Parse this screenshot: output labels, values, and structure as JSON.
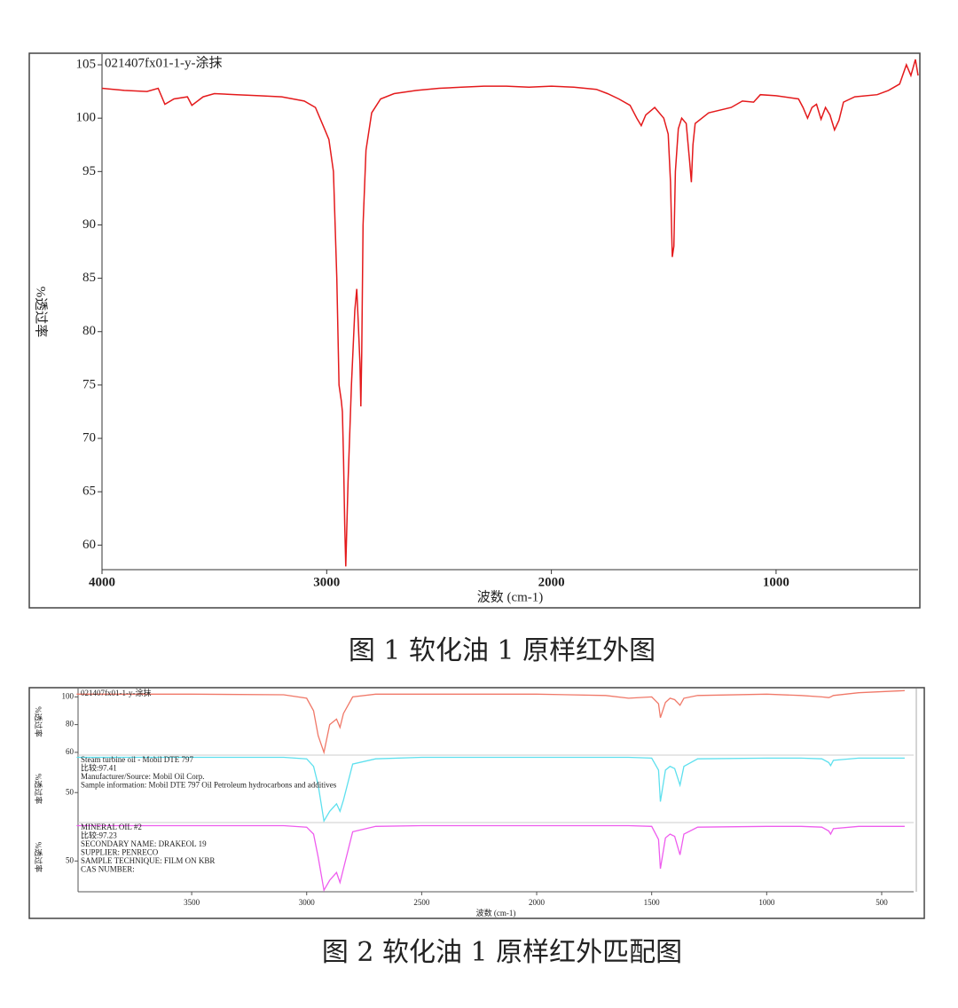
{
  "chart_data": [
    {
      "type": "line",
      "title": "021407fx01-1-y-涂抹",
      "xlabel": "波数 (cm-1)",
      "ylabel": "%透过率",
      "caption": "图 1 软化油 1 原样红外图",
      "xlim": [
        4000,
        368
      ],
      "ylim": [
        57.7,
        106
      ],
      "xticks": [
        4000,
        3000,
        2000,
        1000
      ],
      "yticks": [
        60,
        65,
        70,
        75,
        80,
        85,
        90,
        95,
        100,
        105
      ],
      "x": [
        4000,
        3900,
        3800,
        3750,
        3720,
        3680,
        3620,
        3600,
        3550,
        3500,
        3400,
        3300,
        3200,
        3100,
        3050,
        3010,
        2990,
        2970,
        2955,
        2945,
        2935,
        2930,
        2925,
        2920,
        2915,
        2905,
        2890,
        2875,
        2866,
        2860,
        2852,
        2848,
        2844,
        2838,
        2825,
        2800,
        2760,
        2700,
        2600,
        2500,
        2400,
        2300,
        2200,
        2100,
        2000,
        1900,
        1800,
        1750,
        1700,
        1650,
        1620,
        1600,
        1580,
        1540,
        1500,
        1480,
        1470,
        1462,
        1455,
        1448,
        1435,
        1420,
        1400,
        1385,
        1377,
        1370,
        1360,
        1300,
        1200,
        1150,
        1100,
        1070,
        1000,
        900,
        880,
        860,
        840,
        820,
        800,
        780,
        760,
        740,
        720,
        700,
        650,
        550,
        500,
        450,
        420,
        400,
        380,
        368
      ],
      "series": [
        {
          "color": "#e41a1c",
          "values": [
            102.8,
            102.6,
            102.5,
            102.8,
            101.3,
            101.8,
            102.0,
            101.2,
            102.0,
            102.3,
            102.2,
            102.1,
            102.0,
            101.6,
            101.0,
            99.0,
            98.0,
            95,
            85,
            75,
            73.5,
            72.5,
            68,
            62,
            58,
            66,
            75,
            82,
            84,
            81,
            77,
            73,
            78,
            90,
            97,
            100.5,
            101.8,
            102.3,
            102.6,
            102.8,
            102.9,
            103.0,
            103.0,
            102.9,
            103.0,
            102.9,
            102.7,
            102.3,
            101.8,
            101.2,
            100.0,
            99.3,
            100.3,
            101.0,
            100.0,
            98.5,
            94,
            87,
            88,
            95,
            99,
            100.0,
            99.5,
            96,
            94,
            97.5,
            99.5,
            100.5,
            101.0,
            101.6,
            101.5,
            102.2,
            102.1,
            101.8,
            101.0,
            100.0,
            101.0,
            101.3,
            99.9,
            101.0,
            100.3,
            98.9,
            99.8,
            101.5,
            102.0,
            102.2,
            102.6,
            103.2,
            105.0,
            104.0,
            105.5,
            104.0
          ]
        }
      ]
    },
    {
      "type": "stacked-line",
      "xlabel": "波数 (cm-1)",
      "caption": "图 2 软化油 1 原样红外匹配图",
      "xlim": [
        3994,
        361
      ],
      "xticks": [
        3500,
        3000,
        2500,
        2000,
        1500,
        1000,
        500
      ],
      "x": [
        4000,
        3500,
        3100,
        3000,
        2970,
        2950,
        2925,
        2900,
        2870,
        2855,
        2840,
        2800,
        2700,
        2500,
        2000,
        1700,
        1600,
        1500,
        1470,
        1462,
        1440,
        1420,
        1400,
        1377,
        1360,
        1300,
        1000,
        850,
        760,
        730,
        722,
        710,
        600,
        400
      ],
      "series": [
        {
          "color": "#f07868",
          "ylabel": "%透过率",
          "ylim": [
            58,
            106
          ],
          "yticks": [
            60,
            80,
            100
          ],
          "annotations": [
            "021407fx01-1-y-涂抹"
          ],
          "values": [
            102,
            102,
            101.5,
            99,
            90,
            72,
            60,
            80,
            84,
            78,
            88,
            100,
            102,
            102,
            102,
            101,
            99,
            100,
            95,
            85,
            96,
            99,
            98,
            94,
            99,
            101,
            102,
            101,
            100,
            99.5,
            100,
            101,
            103,
            104.5
          ]
        },
        {
          "color": "#5ee0ee",
          "ylabel": "%透过率",
          "ylim": [
            10,
            100
          ],
          "yticks": [
            50
          ],
          "annotations": [
            "Steam turbine oil - Mobil DTE 797",
            "比较:97.41",
            "Manufacturer/Source:  Mobil Oil Corp.",
            "Sample information:  Mobil DTE 797 Oil Petroleum hydrocarbons and additives"
          ],
          "values": [
            97,
            97,
            97,
            95,
            85,
            60,
            12,
            25,
            35,
            25,
            40,
            88,
            95,
            97,
            97,
            97,
            97,
            96,
            80,
            38,
            80,
            85,
            82,
            60,
            85,
            95,
            96,
            96,
            95,
            90,
            86,
            93,
            96,
            96
          ]
        },
        {
          "color": "#ee5cee",
          "ylabel": "%透过率",
          "ylim": [
            10,
            100
          ],
          "yticks": [
            50
          ],
          "annotations": [
            "MINERAL OIL #2",
            "比较:97.23",
            "SECONDARY NAME:  DRAKEOL 19",
            "SUPPLIER:  PENRECO",
            "SAMPLE TECHNIQUE:  FILM ON KBR",
            "CAS NUMBER:"
          ],
          "values": [
            96,
            96,
            96,
            94,
            85,
            55,
            12,
            25,
            35,
            22,
            40,
            88,
            95,
            96,
            96,
            96,
            96,
            95,
            78,
            40,
            80,
            85,
            82,
            58,
            85,
            94,
            95,
            95,
            94,
            89,
            85,
            92,
            95,
            95
          ]
        }
      ]
    }
  ]
}
